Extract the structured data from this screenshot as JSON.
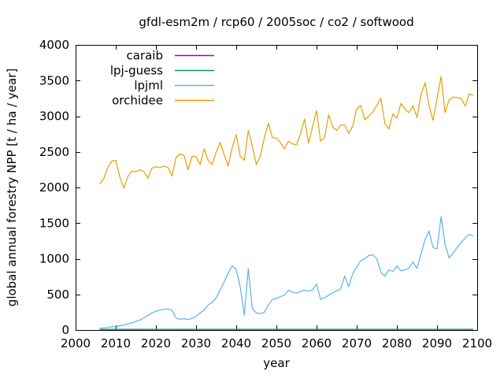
{
  "window": {
    "description": "line chart figure"
  },
  "chart_data": {
    "type": "line",
    "title": "gfdl-esm2m / rcp60 / 2005soc / co2 / softwood",
    "xlabel": "year",
    "ylabel": "global annual forestry NPP [t / ha / year]",
    "xlim": [
      2000,
      2100
    ],
    "ylim": [
      0,
      4000
    ],
    "x_ticks": [
      2000,
      2010,
      2020,
      2030,
      2040,
      2050,
      2060,
      2070,
      2080,
      2090,
      2100
    ],
    "y_ticks": [
      0,
      500,
      1000,
      1500,
      2000,
      2500,
      3000,
      3500,
      4000
    ],
    "grid": false,
    "legend_position": "top-left-inside",
    "background_color": "#ffffff",
    "axis_color": "#000000",
    "years": {
      "start": 2006,
      "end": 2099,
      "step": 1
    },
    "series": [
      {
        "name": "caraib",
        "color": "#9400d3",
        "values": [
          10,
          10,
          10,
          10,
          10,
          10,
          10,
          10,
          10,
          10,
          10,
          10,
          10,
          10,
          10,
          10,
          10,
          10,
          10,
          10,
          10,
          10,
          10,
          10,
          10,
          10,
          10,
          10,
          10,
          10,
          10,
          10,
          10,
          10,
          10,
          10,
          10,
          10,
          10,
          10,
          10,
          10,
          10,
          10,
          10,
          10,
          10,
          10,
          10,
          10,
          10,
          10,
          10,
          10,
          10,
          10,
          10,
          10,
          10,
          10,
          10,
          10,
          10,
          10,
          10,
          10,
          10,
          10,
          10,
          10,
          10,
          10,
          10,
          10,
          10,
          10,
          10,
          10,
          10,
          10,
          10,
          10,
          10,
          10,
          10,
          10,
          10,
          10,
          10,
          10,
          10,
          10,
          10,
          10
        ]
      },
      {
        "name": "lpj-guess",
        "color": "#009e73",
        "values": [
          10,
          10,
          10,
          10,
          10,
          10,
          10,
          10,
          10,
          10,
          10,
          10,
          10,
          10,
          10,
          10,
          10,
          10,
          10,
          10,
          10,
          10,
          10,
          10,
          10,
          10,
          10,
          10,
          10,
          10,
          10,
          10,
          10,
          10,
          10,
          10,
          10,
          10,
          10,
          10,
          10,
          10,
          10,
          10,
          10,
          10,
          10,
          10,
          10,
          10,
          10,
          10,
          10,
          10,
          10,
          10,
          10,
          10,
          10,
          10,
          10,
          10,
          10,
          10,
          10,
          10,
          10,
          10,
          10,
          10,
          10,
          10,
          10,
          10,
          10,
          10,
          10,
          10,
          10,
          10,
          10,
          10,
          10,
          10,
          10,
          10,
          10,
          10,
          10,
          10,
          10,
          10,
          10,
          10
        ]
      },
      {
        "name": "lpjml",
        "color": "#56b4e9",
        "values": [
          25,
          30,
          35,
          45,
          50,
          60,
          70,
          85,
          100,
          120,
          140,
          170,
          205,
          240,
          265,
          280,
          290,
          295,
          280,
          170,
          150,
          160,
          145,
          165,
          190,
          240,
          280,
          350,
          390,
          450,
          560,
          680,
          800,
          900,
          850,
          600,
          210,
          860,
          300,
          240,
          230,
          250,
          350,
          430,
          440,
          470,
          490,
          560,
          530,
          520,
          540,
          560,
          545,
          560,
          645,
          430,
          450,
          490,
          520,
          550,
          575,
          755,
          610,
          790,
          880,
          975,
          1000,
          1045,
          1055,
          1000,
          810,
          755,
          845,
          820,
          900,
          830,
          845,
          870,
          955,
          865,
          1065,
          1265,
          1390,
          1155,
          1140,
          1590,
          1200,
          1010,
          1080,
          1160,
          1230,
          1290,
          1340,
          1320
        ]
      },
      {
        "name": "orchidee",
        "color": "#e69f00",
        "values": [
          2050,
          2120,
          2280,
          2370,
          2380,
          2150,
          1990,
          2150,
          2230,
          2220,
          2250,
          2220,
          2130,
          2270,
          2290,
          2280,
          2300,
          2280,
          2160,
          2420,
          2470,
          2450,
          2250,
          2440,
          2430,
          2320,
          2540,
          2380,
          2320,
          2500,
          2630,
          2460,
          2300,
          2560,
          2740,
          2440,
          2380,
          2800,
          2580,
          2320,
          2440,
          2700,
          2900,
          2700,
          2690,
          2630,
          2540,
          2650,
          2610,
          2600,
          2750,
          2960,
          2620,
          2850,
          3080,
          2650,
          2700,
          3020,
          2850,
          2800,
          2870,
          2880,
          2760,
          2860,
          3100,
          3150,
          2950,
          3000,
          3060,
          3150,
          3250,
          2900,
          2820,
          3030,
          2970,
          3180,
          3100,
          3050,
          3150,
          2980,
          3300,
          3470,
          3150,
          2940,
          3250,
          3560,
          3050,
          3230,
          3270,
          3260,
          3250,
          3140,
          3310,
          3290
        ]
      }
    ]
  }
}
